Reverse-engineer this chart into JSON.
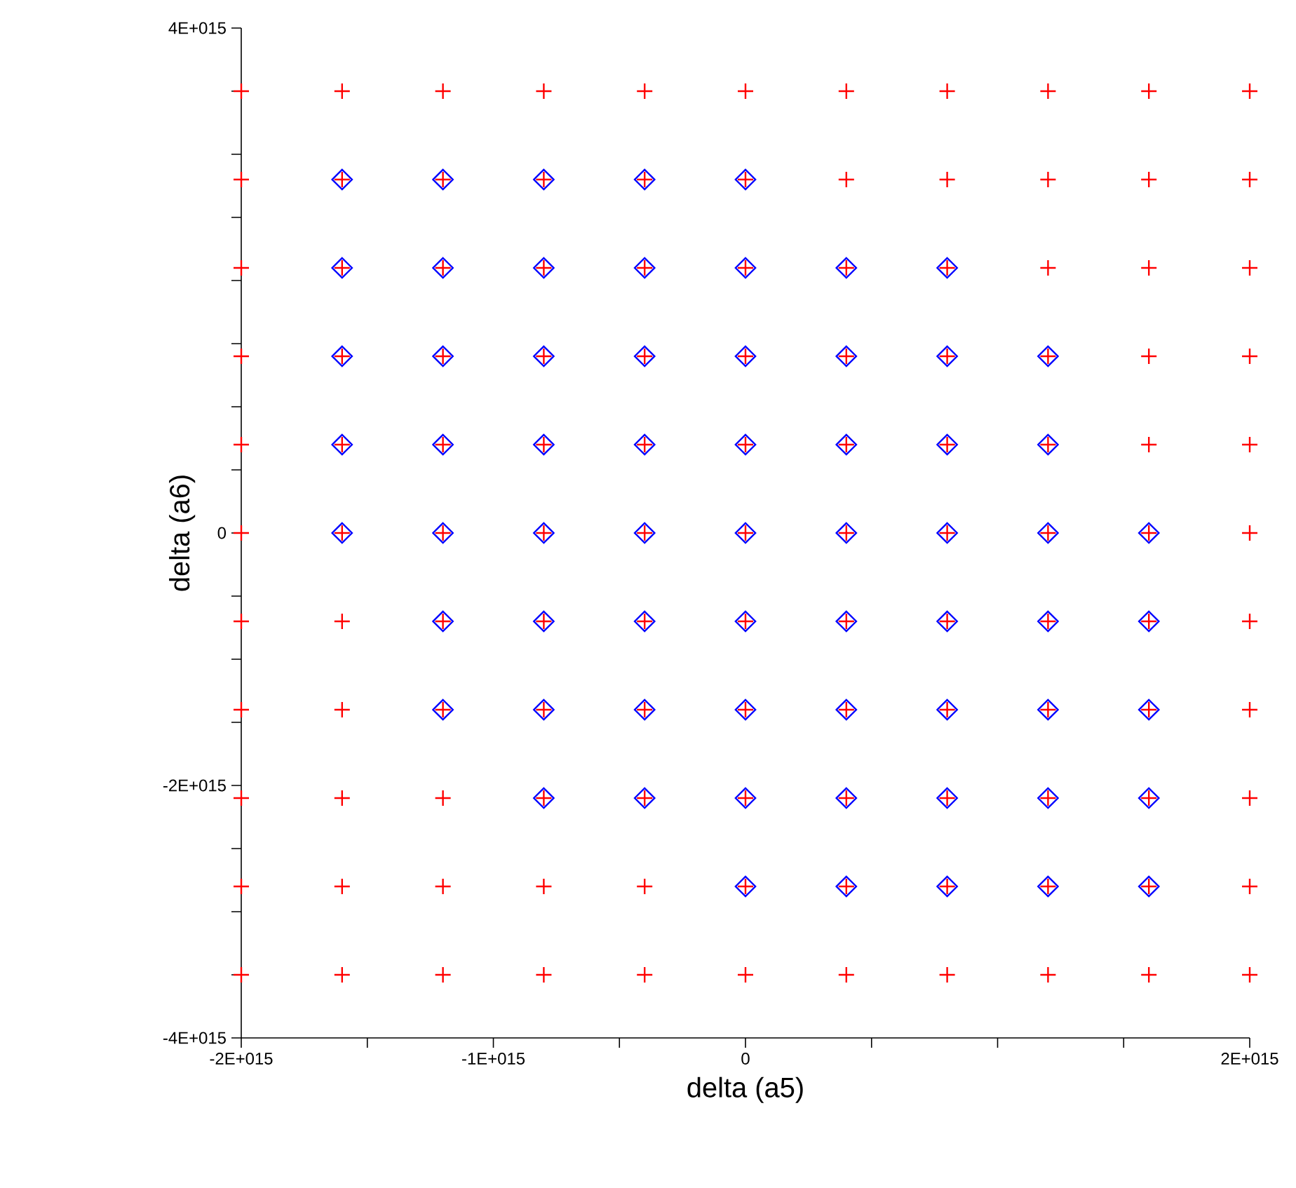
{
  "chart_data": {
    "type": "scatter",
    "xlabel": "delta (a5)",
    "ylabel": "delta (a6)",
    "xlim": [
      -2000000000000000.0,
      2000000000000000.0
    ],
    "ylim": [
      -4000000000000000.0,
      4000000000000000.0
    ],
    "xticks": [
      {
        "value": -2000000000000000.0,
        "label": "-2E+015"
      },
      {
        "value": -1500000000000000.0,
        "label": null
      },
      {
        "value": -1000000000000000.0,
        "label": "-1E+015"
      },
      {
        "value": -500000000000000.0,
        "label": null
      },
      {
        "value": 0,
        "label": "0"
      },
      {
        "value": 500000000000000.0,
        "label": null
      },
      {
        "value": 1000000000000000.0,
        "label": null
      },
      {
        "value": 1500000000000000.0,
        "label": null
      },
      {
        "value": 2000000000000000.0,
        "label": "2E+015"
      }
    ],
    "yticks": [
      {
        "value": -4000000000000000.0,
        "label": "-4E+015"
      },
      {
        "value": -3500000000000000.0,
        "label": null
      },
      {
        "value": -3000000000000000.0,
        "label": null
      },
      {
        "value": -2500000000000000.0,
        "label": null
      },
      {
        "value": -2000000000000000.0,
        "label": "-2E+015"
      },
      {
        "value": -1500000000000000.0,
        "label": null
      },
      {
        "value": -1000000000000000.0,
        "label": null
      },
      {
        "value": -500000000000000.0,
        "label": null
      },
      {
        "value": 0,
        "label": "0"
      },
      {
        "value": 500000000000000.0,
        "label": null
      },
      {
        "value": 1000000000000000.0,
        "label": null
      },
      {
        "value": 1500000000000000.0,
        "label": null
      },
      {
        "value": 2000000000000000.0,
        "label": null
      },
      {
        "value": 2500000000000000.0,
        "label": null
      },
      {
        "value": 3000000000000000.0,
        "label": null
      },
      {
        "value": 3500000000000000.0,
        "label": null
      },
      {
        "value": 4000000000000000.0,
        "label": "4E+015"
      }
    ],
    "grid": false,
    "series": [
      {
        "color": "#ff0000",
        "marker": "cross",
        "x": [
          -2000000000000000.0,
          -1600000000000000.0,
          -1200000000000000.0,
          -800000000000000.0,
          -400000000000000.0,
          0,
          400000000000000.0,
          800000000000000.0,
          1200000000000000.0,
          1600000000000000.0,
          2000000000000000.0,
          -2000000000000000.0,
          -1600000000000000.0,
          -1200000000000000.0,
          -800000000000000.0,
          -400000000000000.0,
          0,
          400000000000000.0,
          800000000000000.0,
          1200000000000000.0,
          1600000000000000.0,
          2000000000000000.0,
          -2000000000000000.0,
          -1600000000000000.0,
          -1200000000000000.0,
          -800000000000000.0,
          -400000000000000.0,
          0,
          400000000000000.0,
          800000000000000.0,
          1200000000000000.0,
          1600000000000000.0,
          2000000000000000.0,
          -2000000000000000.0,
          -1600000000000000.0,
          -1200000000000000.0,
          -800000000000000.0,
          -400000000000000.0,
          0,
          400000000000000.0,
          800000000000000.0,
          1200000000000000.0,
          1600000000000000.0,
          2000000000000000.0,
          -2000000000000000.0,
          -1600000000000000.0,
          -1200000000000000.0,
          -800000000000000.0,
          -400000000000000.0,
          0,
          400000000000000.0,
          800000000000000.0,
          1200000000000000.0,
          1600000000000000.0,
          2000000000000000.0,
          -2000000000000000.0,
          -1600000000000000.0,
          -1200000000000000.0,
          -800000000000000.0,
          -400000000000000.0,
          0,
          400000000000000.0,
          800000000000000.0,
          1200000000000000.0,
          1600000000000000.0,
          2000000000000000.0,
          -2000000000000000.0,
          -1600000000000000.0,
          -1200000000000000.0,
          -800000000000000.0,
          -400000000000000.0,
          0,
          400000000000000.0,
          800000000000000.0,
          1200000000000000.0,
          1600000000000000.0,
          2000000000000000.0,
          -2000000000000000.0,
          -1600000000000000.0,
          -1200000000000000.0,
          -800000000000000.0,
          -400000000000000.0,
          0,
          400000000000000.0,
          800000000000000.0,
          1200000000000000.0,
          1600000000000000.0,
          2000000000000000.0,
          -2000000000000000.0,
          -1600000000000000.0,
          -1200000000000000.0,
          -800000000000000.0,
          -400000000000000.0,
          0,
          400000000000000.0,
          800000000000000.0,
          1200000000000000.0,
          1600000000000000.0,
          2000000000000000.0,
          -2000000000000000.0,
          -1600000000000000.0,
          -1200000000000000.0,
          -800000000000000.0,
          -400000000000000.0,
          0,
          400000000000000.0,
          800000000000000.0,
          1200000000000000.0,
          1600000000000000.0,
          2000000000000000.0,
          -2000000000000000.0,
          -1600000000000000.0,
          -1200000000000000.0,
          -800000000000000.0,
          -400000000000000.0,
          0,
          400000000000000.0,
          800000000000000.0,
          1200000000000000.0,
          1600000000000000.0,
          2000000000000000.0
        ],
        "values": [
          3500000000000000.0,
          3500000000000000.0,
          3500000000000000.0,
          3500000000000000.0,
          3500000000000000.0,
          3500000000000000.0,
          3500000000000000.0,
          3500000000000000.0,
          3500000000000000.0,
          3500000000000000.0,
          3500000000000000.0,
          2800000000000000.0,
          2800000000000000.0,
          2800000000000000.0,
          2800000000000000.0,
          2800000000000000.0,
          2800000000000000.0,
          2800000000000000.0,
          2800000000000000.0,
          2800000000000000.0,
          2800000000000000.0,
          2800000000000000.0,
          2100000000000000.0,
          2100000000000000.0,
          2100000000000000.0,
          2100000000000000.0,
          2100000000000000.0,
          2100000000000000.0,
          2100000000000000.0,
          2100000000000000.0,
          2100000000000000.0,
          2100000000000000.0,
          2100000000000000.0,
          1400000000000000.0,
          1400000000000000.0,
          1400000000000000.0,
          1400000000000000.0,
          1400000000000000.0,
          1400000000000000.0,
          1400000000000000.0,
          1400000000000000.0,
          1400000000000000.0,
          1400000000000000.0,
          1400000000000000.0,
          700000000000000.0,
          700000000000000.0,
          700000000000000.0,
          700000000000000.0,
          700000000000000.0,
          700000000000000.0,
          700000000000000.0,
          700000000000000.0,
          700000000000000.0,
          700000000000000.0,
          700000000000000.0,
          0,
          0,
          0,
          0,
          0,
          0,
          0,
          0,
          0,
          0,
          0,
          -700000000000000.0,
          -700000000000000.0,
          -700000000000000.0,
          -700000000000000.0,
          -700000000000000.0,
          -700000000000000.0,
          -700000000000000.0,
          -700000000000000.0,
          -700000000000000.0,
          -700000000000000.0,
          -700000000000000.0,
          -1400000000000000.0,
          -1400000000000000.0,
          -1400000000000000.0,
          -1400000000000000.0,
          -1400000000000000.0,
          -1400000000000000.0,
          -1400000000000000.0,
          -1400000000000000.0,
          -1400000000000000.0,
          -1400000000000000.0,
          -1400000000000000.0,
          -2100000000000000.0,
          -2100000000000000.0,
          -2100000000000000.0,
          -2100000000000000.0,
          -2100000000000000.0,
          -2100000000000000.0,
          -2100000000000000.0,
          -2100000000000000.0,
          -2100000000000000.0,
          -2100000000000000.0,
          -2100000000000000.0,
          -2800000000000000.0,
          -2800000000000000.0,
          -2800000000000000.0,
          -2800000000000000.0,
          -2800000000000000.0,
          -2800000000000000.0,
          -2800000000000000.0,
          -2800000000000000.0,
          -2800000000000000.0,
          -2800000000000000.0,
          -2800000000000000.0,
          -3500000000000000.0,
          -3500000000000000.0,
          -3500000000000000.0,
          -3500000000000000.0,
          -3500000000000000.0,
          -3500000000000000.0,
          -3500000000000000.0,
          -3500000000000000.0,
          -3500000000000000.0,
          -3500000000000000.0,
          -3500000000000000.0
        ]
      },
      {
        "color": "#0000ff",
        "marker": "diamond",
        "x": [
          -1600000000000000.0,
          -1200000000000000.0,
          -800000000000000.0,
          -400000000000000.0,
          0,
          -1600000000000000.0,
          -1200000000000000.0,
          -800000000000000.0,
          -400000000000000.0,
          0,
          400000000000000.0,
          800000000000000.0,
          -1600000000000000.0,
          -1200000000000000.0,
          -800000000000000.0,
          -400000000000000.0,
          0,
          400000000000000.0,
          800000000000000.0,
          1200000000000000.0,
          -1600000000000000.0,
          -1200000000000000.0,
          -800000000000000.0,
          -400000000000000.0,
          0,
          400000000000000.0,
          800000000000000.0,
          1200000000000000.0,
          -1600000000000000.0,
          -1200000000000000.0,
          -800000000000000.0,
          -400000000000000.0,
          0,
          400000000000000.0,
          800000000000000.0,
          1200000000000000.0,
          1600000000000000.0,
          -1200000000000000.0,
          -800000000000000.0,
          -400000000000000.0,
          0,
          400000000000000.0,
          800000000000000.0,
          1200000000000000.0,
          1600000000000000.0,
          -1200000000000000.0,
          -800000000000000.0,
          -400000000000000.0,
          0,
          400000000000000.0,
          800000000000000.0,
          1200000000000000.0,
          1600000000000000.0,
          -800000000000000.0,
          -400000000000000.0,
          0,
          400000000000000.0,
          800000000000000.0,
          1200000000000000.0,
          1600000000000000.0,
          0,
          400000000000000.0,
          800000000000000.0,
          1200000000000000.0,
          1600000000000000.0
        ],
        "values": [
          2800000000000000.0,
          2800000000000000.0,
          2800000000000000.0,
          2800000000000000.0,
          2800000000000000.0,
          2100000000000000.0,
          2100000000000000.0,
          2100000000000000.0,
          2100000000000000.0,
          2100000000000000.0,
          2100000000000000.0,
          2100000000000000.0,
          1400000000000000.0,
          1400000000000000.0,
          1400000000000000.0,
          1400000000000000.0,
          1400000000000000.0,
          1400000000000000.0,
          1400000000000000.0,
          1400000000000000.0,
          700000000000000.0,
          700000000000000.0,
          700000000000000.0,
          700000000000000.0,
          700000000000000.0,
          700000000000000.0,
          700000000000000.0,
          700000000000000.0,
          0,
          0,
          0,
          0,
          0,
          0,
          0,
          0,
          0,
          -700000000000000.0,
          -700000000000000.0,
          -700000000000000.0,
          -700000000000000.0,
          -700000000000000.0,
          -700000000000000.0,
          -700000000000000.0,
          -700000000000000.0,
          -1400000000000000.0,
          -1400000000000000.0,
          -1400000000000000.0,
          -1400000000000000.0,
          -1400000000000000.0,
          -1400000000000000.0,
          -1400000000000000.0,
          -1400000000000000.0,
          -2100000000000000.0,
          -2100000000000000.0,
          -2100000000000000.0,
          -2100000000000000.0,
          -2100000000000000.0,
          -2100000000000000.0,
          -2100000000000000.0,
          -2800000000000000.0,
          -2800000000000000.0,
          -2800000000000000.0,
          -2800000000000000.0,
          -2800000000000000.0
        ]
      }
    ]
  }
}
